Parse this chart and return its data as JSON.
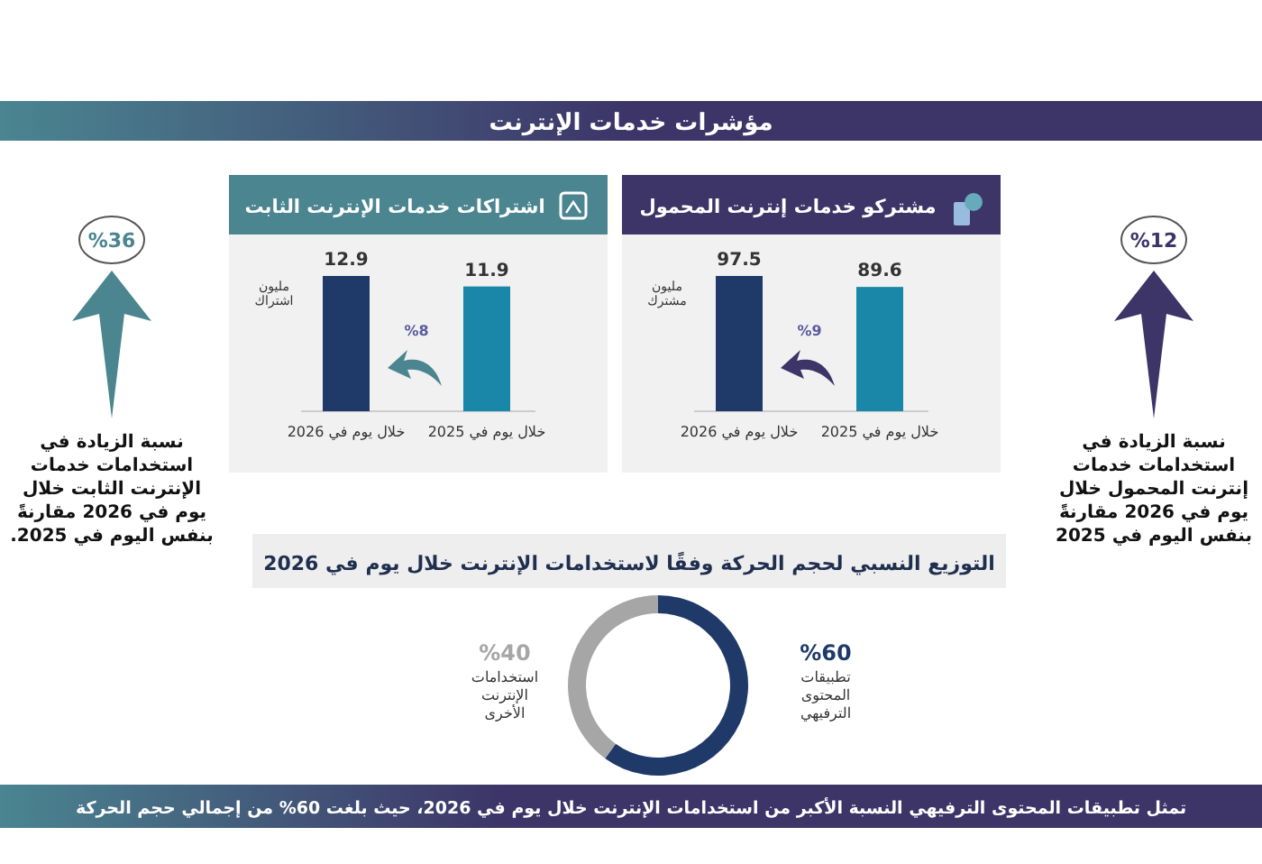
{
  "chart_data": [
    {
      "type": "other",
      "title": "مؤشرات خدمات الإنترنت",
      "annotations": [
        "%12",
        "نسبة الزيادة في استخدامات خدمات إنترنت المحمول خلال يوم في 2026 مقارنةً بنفس اليوم في 2025",
        "%36",
        "نسبة الزيادة في استخدامات خدمات الإنترنت الثابت خلال يوم في 2026 مقارنةً بنفس اليوم في 2025."
      ]
    },
    {
      "type": "bar",
      "title": "مشتركو خدمات إنترنت المحمول",
      "ylabel": "مليون مشترك",
      "categories": [
        "خلال يوم في 2026",
        "خلال يوم في 2025"
      ],
      "values": [
        97.5,
        89.6
      ],
      "colors": [
        "#1f3a68",
        "#1a86a8"
      ],
      "data_labels": true,
      "annotations": [
        "%9"
      ]
    },
    {
      "type": "bar",
      "title": "اشتراكات خدمات الإنترنت الثابت",
      "ylabel": "مليون اشتراك",
      "categories": [
        "خلال يوم في 2026",
        "خلال يوم في 2025"
      ],
      "values": [
        12.9,
        11.9
      ],
      "colors": [
        "#1f3a68",
        "#1a86a8"
      ],
      "data_labels": true,
      "annotations": [
        "%8"
      ]
    },
    {
      "type": "donut",
      "title": "التوزيع النسبي لحجم الحركة وفقًا لاستخدامات الإنترنت خلال يوم في 2026",
      "categories": [
        "تطبيقات المحتوى الترفيهي",
        "استخدامات الإنترنت الأخرى"
      ],
      "values": [
        60,
        40
      ],
      "value_labels": [
        "%60",
        "%40"
      ],
      "colors": [
        "#1f3a68",
        "#a6a6a6"
      ],
      "annotations": [
        "تمثل تطبيقات المحتوى الترفيهي النسبة الأكبر من استخدامات الإنترنت خلال يوم في 2026، حيث بلغت 60% من إجمالي حجم الحركة"
      ]
    }
  ]
}
